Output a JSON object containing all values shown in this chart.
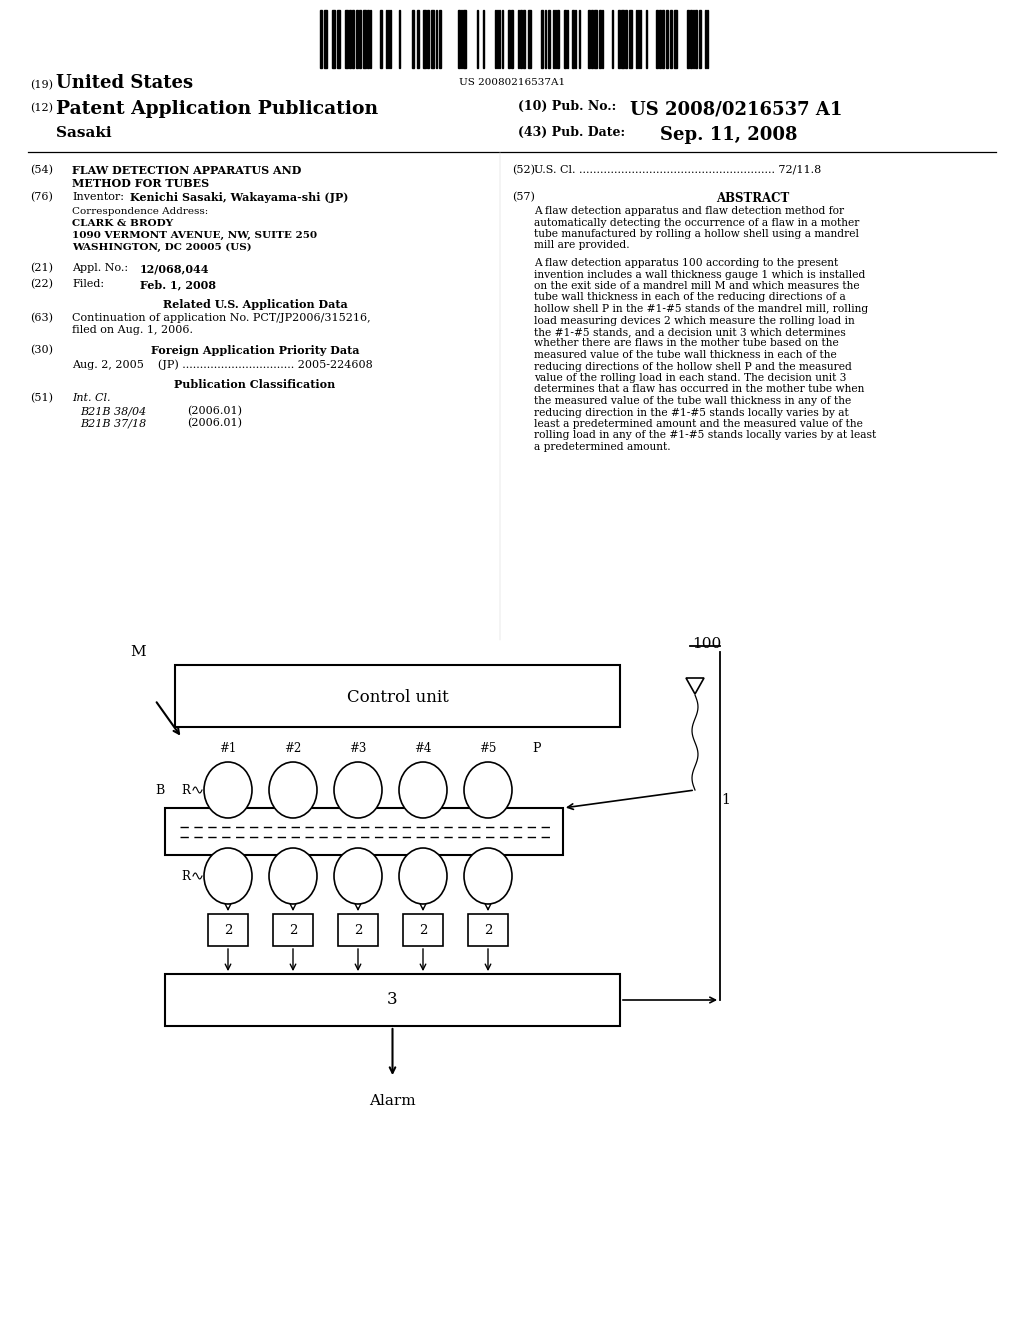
{
  "bg_color": "#ffffff",
  "barcode_text": "US 20080216537A1",
  "header_19": "(19)",
  "header_19_text": "United States",
  "header_12": "(12)",
  "header_12_text": "Patent Application Publication",
  "header_pub_no_label": "(10) Pub. No.:",
  "header_pub_no_val": "US 2008/0216537 A1",
  "header_sasaki": "Sasaki",
  "header_pub_date_label": "(43) Pub. Date:",
  "header_pub_date_val": "Sep. 11, 2008",
  "field54_label": "(54)",
  "field54_line1": "FLAW DETECTION APPARATUS AND",
  "field54_line2": "METHOD FOR TUBES",
  "field52_label": "(52)",
  "field52_text": "U.S. Cl. ........................................................ 72/11.8",
  "field76_label": "(76)",
  "field76_key": "Inventor:",
  "field76_val": "Kenichi Sasaki, Wakayama-shi (JP)",
  "corr_line0": "Correspondence Address:",
  "corr_line1": "CLARK & BRODY",
  "corr_line2": "1090 VERMONT AVENUE, NW, SUITE 250",
  "corr_line3": "WASHINGTON, DC 20005 (US)",
  "field57_label": "(57)",
  "field57_heading": "ABSTRACT",
  "abstract_para1_lines": [
    "A flaw detection apparatus and flaw detection method for",
    "automatically detecting the occurrence of a flaw in a mother",
    "tube manufactured by rolling a hollow shell using a mandrel",
    "mill are provided."
  ],
  "abstract_para2_lines": [
    "A flaw detection apparatus 100 according to the present",
    "invention includes a wall thickness gauge 1 which is installed",
    "on the exit side of a mandrel mill M and which measures the",
    "tube wall thickness in each of the reducing directions of a",
    "hollow shell P in the #1-#5 stands of the mandrel mill, rolling",
    "load measuring devices 2 which measure the rolling load in",
    "the #1-#5 stands, and a decision unit 3 which determines",
    "whether there are flaws in the mother tube based on the",
    "measured value of the tube wall thickness in each of the",
    "reducing directions of the hollow shell P and the measured",
    "value of the rolling load in each stand. The decision unit 3",
    "determines that a flaw has occurred in the mother tube when",
    "the measured value of the tube wall thickness in any of the",
    "reducing direction in the #1-#5 stands locally varies by at",
    "least a predetermined amount and the measured value of the",
    "rolling load in any of the #1-#5 stands locally varies by at least",
    "a predetermined amount."
  ],
  "field21_label": "(21)",
  "field21_key": "Appl. No.:",
  "field21_val": "12/068,044",
  "field22_label": "(22)",
  "field22_key": "Filed:",
  "field22_val": "Feb. 1, 2008",
  "related_heading": "Related U.S. Application Data",
  "field63_label": "(63)",
  "field63_line1": "Continuation of application No. PCT/JP2006/315216,",
  "field63_line2": "filed on Aug. 1, 2006.",
  "field30_label": "(30)",
  "field30_heading": "Foreign Application Priority Data",
  "field30_text": "Aug. 2, 2005    (JP) ................................ 2005-224608",
  "pub_class_heading": "Publication Classification",
  "field51_label": "(51)",
  "field51_key": "Int. Cl.",
  "field51_rows": [
    [
      "B21B 38/04",
      "(2006.01)"
    ],
    [
      "B21B 37/18",
      "(2006.01)"
    ]
  ],
  "diagram_label_M": "M",
  "diagram_label_B": "B",
  "diagram_label_R_top": "R",
  "diagram_label_R_bot": "R",
  "diagram_label_P": "P",
  "diagram_label_100": "100",
  "diagram_label_1": "1",
  "diagram_control_unit": "Control unit",
  "diagram_stands": [
    "#1",
    "#2",
    "#3",
    "#4",
    "#5"
  ],
  "diagram_box2_label": "2",
  "diagram_box3_label": "3",
  "diagram_alarm": "Alarm"
}
